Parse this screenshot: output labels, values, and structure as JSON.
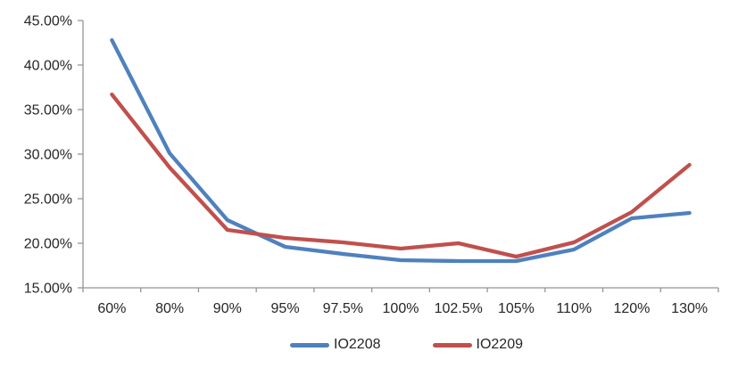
{
  "chart_data": {
    "type": "line",
    "title": "",
    "xlabel": "",
    "ylabel": "",
    "categories": [
      "60%",
      "80%",
      "90%",
      "95%",
      "97.5%",
      "100%",
      "102.5%",
      "105%",
      "110%",
      "120%",
      "130%"
    ],
    "series": [
      {
        "name": "IO2208",
        "color": "#4F81BD",
        "values": [
          42.8,
          30.1,
          22.6,
          19.6,
          18.8,
          18.1,
          18.0,
          18.0,
          19.3,
          22.8,
          23.4
        ]
      },
      {
        "name": "IO2209",
        "color": "#C0504D",
        "values": [
          36.7,
          28.5,
          21.5,
          20.6,
          20.1,
          19.4,
          20.0,
          18.5,
          20.1,
          23.5,
          28.8
        ]
      }
    ],
    "ylim": [
      15,
      45
    ],
    "ytick_step": 5,
    "ytick_labels": [
      "15.00%",
      "20.00%",
      "25.00%",
      "30.00%",
      "35.00%",
      "40.00%",
      "45.00%"
    ],
    "grid": false,
    "legend_position": "bottom",
    "axis_color": "#959595",
    "text_color": "#262626"
  }
}
